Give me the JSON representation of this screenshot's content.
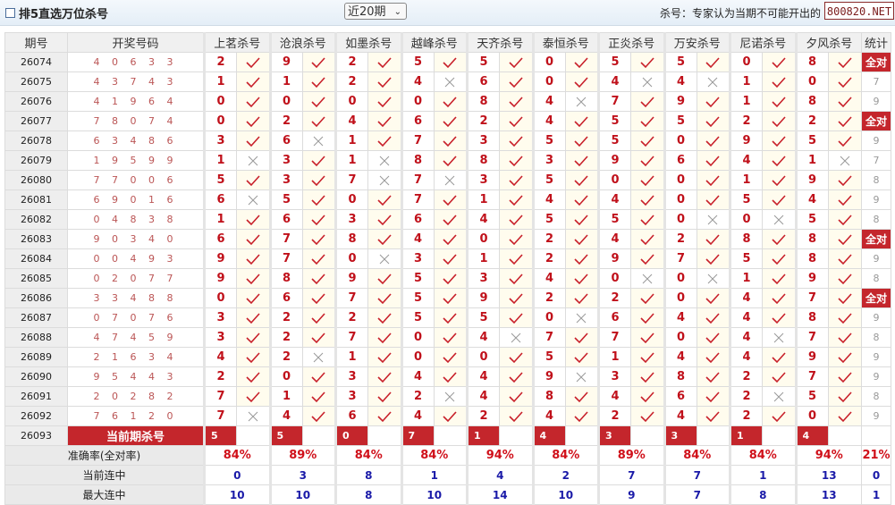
{
  "header": {
    "title": "排5直选万位杀号",
    "period_select": "近20期",
    "note": "杀号：专家认为当期不可能开出的",
    "logo_text": "800820.NET"
  },
  "colors": {
    "accent": "#c4262c",
    "number": "#c0101a",
    "streak": "#1a1aa8"
  },
  "table": {
    "columns": {
      "period": "期号",
      "draw": "开奖号码",
      "stat": "统计"
    },
    "experts": [
      "上茗杀号",
      "沧浪杀号",
      "如墨杀号",
      "越峰杀号",
      "天齐杀号",
      "泰恒杀号",
      "正炎杀号",
      "万安杀号",
      "尼诺杀号",
      "夕风杀号"
    ],
    "rows": [
      {
        "period": "26074",
        "draw": "4 0 6 3 3",
        "kills": [
          [
            2,
            1
          ],
          [
            9,
            1
          ],
          [
            2,
            1
          ],
          [
            5,
            1
          ],
          [
            5,
            1
          ],
          [
            0,
            1
          ],
          [
            5,
            1
          ],
          [
            5,
            1
          ],
          [
            0,
            1
          ],
          [
            8,
            1
          ]
        ],
        "stat": "全对"
      },
      {
        "period": "26075",
        "draw": "4 3 7 4 3",
        "kills": [
          [
            1,
            1
          ],
          [
            1,
            1
          ],
          [
            2,
            1
          ],
          [
            4,
            0
          ],
          [
            6,
            1
          ],
          [
            0,
            1
          ],
          [
            4,
            0
          ],
          [
            4,
            0
          ],
          [
            1,
            1
          ],
          [
            0,
            1
          ]
        ],
        "stat": "7"
      },
      {
        "period": "26076",
        "draw": "4 1 9 6 4",
        "kills": [
          [
            0,
            1
          ],
          [
            0,
            1
          ],
          [
            0,
            1
          ],
          [
            0,
            1
          ],
          [
            8,
            1
          ],
          [
            4,
            0
          ],
          [
            7,
            1
          ],
          [
            9,
            1
          ],
          [
            1,
            1
          ],
          [
            8,
            1
          ]
        ],
        "stat": "9"
      },
      {
        "period": "26077",
        "draw": "7 8 0 7 4",
        "kills": [
          [
            0,
            1
          ],
          [
            2,
            1
          ],
          [
            4,
            1
          ],
          [
            6,
            1
          ],
          [
            2,
            1
          ],
          [
            4,
            1
          ],
          [
            5,
            1
          ],
          [
            5,
            1
          ],
          [
            2,
            1
          ],
          [
            2,
            1
          ]
        ],
        "stat": "全对"
      },
      {
        "period": "26078",
        "draw": "6 3 4 8 6",
        "kills": [
          [
            3,
            1
          ],
          [
            6,
            0
          ],
          [
            1,
            1
          ],
          [
            7,
            1
          ],
          [
            3,
            1
          ],
          [
            5,
            1
          ],
          [
            5,
            1
          ],
          [
            0,
            1
          ],
          [
            9,
            1
          ],
          [
            5,
            1
          ]
        ],
        "stat": "9"
      },
      {
        "period": "26079",
        "draw": "1 9 5 9 9",
        "kills": [
          [
            1,
            0
          ],
          [
            3,
            1
          ],
          [
            1,
            0
          ],
          [
            8,
            1
          ],
          [
            8,
            1
          ],
          [
            3,
            1
          ],
          [
            9,
            1
          ],
          [
            6,
            1
          ],
          [
            4,
            1
          ],
          [
            1,
            0
          ]
        ],
        "stat": "7"
      },
      {
        "period": "26080",
        "draw": "7 7 0 0 6",
        "kills": [
          [
            5,
            1
          ],
          [
            3,
            1
          ],
          [
            7,
            0
          ],
          [
            7,
            0
          ],
          [
            3,
            1
          ],
          [
            5,
            1
          ],
          [
            0,
            1
          ],
          [
            0,
            1
          ],
          [
            1,
            1
          ],
          [
            9,
            1
          ]
        ],
        "stat": "8"
      },
      {
        "period": "26081",
        "draw": "6 9 0 1 6",
        "kills": [
          [
            6,
            0
          ],
          [
            5,
            1
          ],
          [
            0,
            1
          ],
          [
            7,
            1
          ],
          [
            1,
            1
          ],
          [
            4,
            1
          ],
          [
            4,
            1
          ],
          [
            0,
            1
          ],
          [
            5,
            1
          ],
          [
            4,
            1
          ]
        ],
        "stat": "9"
      },
      {
        "period": "26082",
        "draw": "0 4 8 3 8",
        "kills": [
          [
            1,
            1
          ],
          [
            6,
            1
          ],
          [
            3,
            1
          ],
          [
            6,
            1
          ],
          [
            4,
            1
          ],
          [
            5,
            1
          ],
          [
            5,
            1
          ],
          [
            0,
            0
          ],
          [
            0,
            0
          ],
          [
            5,
            1
          ]
        ],
        "stat": "8"
      },
      {
        "period": "26083",
        "draw": "9 0 3 4 0",
        "kills": [
          [
            6,
            1
          ],
          [
            7,
            1
          ],
          [
            8,
            1
          ],
          [
            4,
            1
          ],
          [
            0,
            1
          ],
          [
            2,
            1
          ],
          [
            4,
            1
          ],
          [
            2,
            1
          ],
          [
            8,
            1
          ],
          [
            8,
            1
          ]
        ],
        "stat": "全对"
      },
      {
        "period": "26084",
        "draw": "0 0 4 9 3",
        "kills": [
          [
            9,
            1
          ],
          [
            7,
            1
          ],
          [
            0,
            0
          ],
          [
            3,
            1
          ],
          [
            1,
            1
          ],
          [
            2,
            1
          ],
          [
            9,
            1
          ],
          [
            7,
            1
          ],
          [
            5,
            1
          ],
          [
            8,
            1
          ]
        ],
        "stat": "9"
      },
      {
        "period": "26085",
        "draw": "0 2 0 7 7",
        "kills": [
          [
            9,
            1
          ],
          [
            8,
            1
          ],
          [
            9,
            1
          ],
          [
            5,
            1
          ],
          [
            3,
            1
          ],
          [
            4,
            1
          ],
          [
            0,
            0
          ],
          [
            0,
            0
          ],
          [
            1,
            1
          ],
          [
            9,
            1
          ]
        ],
        "stat": "8"
      },
      {
        "period": "26086",
        "draw": "3 3 4 8 8",
        "kills": [
          [
            0,
            1
          ],
          [
            6,
            1
          ],
          [
            7,
            1
          ],
          [
            5,
            1
          ],
          [
            9,
            1
          ],
          [
            2,
            1
          ],
          [
            2,
            1
          ],
          [
            0,
            1
          ],
          [
            4,
            1
          ],
          [
            7,
            1
          ]
        ],
        "stat": "全对"
      },
      {
        "period": "26087",
        "draw": "0 7 0 7 6",
        "kills": [
          [
            3,
            1
          ],
          [
            2,
            1
          ],
          [
            2,
            1
          ],
          [
            5,
            1
          ],
          [
            5,
            1
          ],
          [
            0,
            0
          ],
          [
            6,
            1
          ],
          [
            4,
            1
          ],
          [
            4,
            1
          ],
          [
            8,
            1
          ]
        ],
        "stat": "9"
      },
      {
        "period": "26088",
        "draw": "4 7 4 5 9",
        "kills": [
          [
            3,
            1
          ],
          [
            2,
            1
          ],
          [
            7,
            1
          ],
          [
            0,
            1
          ],
          [
            4,
            0
          ],
          [
            7,
            1
          ],
          [
            7,
            1
          ],
          [
            0,
            1
          ],
          [
            4,
            0
          ],
          [
            7,
            1
          ]
        ],
        "stat": "8"
      },
      {
        "period": "26089",
        "draw": "2 1 6 3 4",
        "kills": [
          [
            4,
            1
          ],
          [
            2,
            0
          ],
          [
            1,
            1
          ],
          [
            0,
            1
          ],
          [
            0,
            1
          ],
          [
            5,
            1
          ],
          [
            1,
            1
          ],
          [
            4,
            1
          ],
          [
            4,
            1
          ],
          [
            9,
            1
          ]
        ],
        "stat": "9"
      },
      {
        "period": "26090",
        "draw": "9 5 4 4 3",
        "kills": [
          [
            2,
            1
          ],
          [
            0,
            1
          ],
          [
            3,
            1
          ],
          [
            4,
            1
          ],
          [
            4,
            1
          ],
          [
            9,
            0
          ],
          [
            3,
            1
          ],
          [
            8,
            1
          ],
          [
            2,
            1
          ],
          [
            7,
            1
          ]
        ],
        "stat": "9"
      },
      {
        "period": "26091",
        "draw": "2 0 2 8 2",
        "kills": [
          [
            7,
            1
          ],
          [
            1,
            1
          ],
          [
            3,
            1
          ],
          [
            2,
            0
          ],
          [
            4,
            1
          ],
          [
            8,
            1
          ],
          [
            4,
            1
          ],
          [
            6,
            1
          ],
          [
            2,
            0
          ],
          [
            5,
            1
          ]
        ],
        "stat": "8"
      },
      {
        "period": "26092",
        "draw": "7 6 1 2 0",
        "kills": [
          [
            7,
            0
          ],
          [
            4,
            1
          ],
          [
            6,
            1
          ],
          [
            4,
            1
          ],
          [
            2,
            1
          ],
          [
            4,
            1
          ],
          [
            2,
            1
          ],
          [
            4,
            1
          ],
          [
            2,
            1
          ],
          [
            0,
            1
          ]
        ],
        "stat": "9"
      }
    ],
    "current": {
      "period": "26093",
      "label": "当前期杀号",
      "kills": [
        "5",
        "5",
        "0",
        "7",
        "1",
        "4",
        "3",
        "3",
        "1",
        "4"
      ]
    },
    "summary": [
      {
        "label": "准确率(全对率)",
        "values": [
          "84%",
          "89%",
          "84%",
          "84%",
          "94%",
          "84%",
          "89%",
          "84%",
          "84%",
          "94%"
        ],
        "stat": "21%"
      },
      {
        "label": "当前连中",
        "values": [
          "0",
          "3",
          "8",
          "1",
          "4",
          "2",
          "7",
          "7",
          "1",
          "13"
        ],
        "stat": "0"
      },
      {
        "label": "最大连中",
        "values": [
          "10",
          "10",
          "8",
          "10",
          "14",
          "10",
          "9",
          "7",
          "8",
          "13"
        ],
        "stat": "1"
      }
    ]
  }
}
